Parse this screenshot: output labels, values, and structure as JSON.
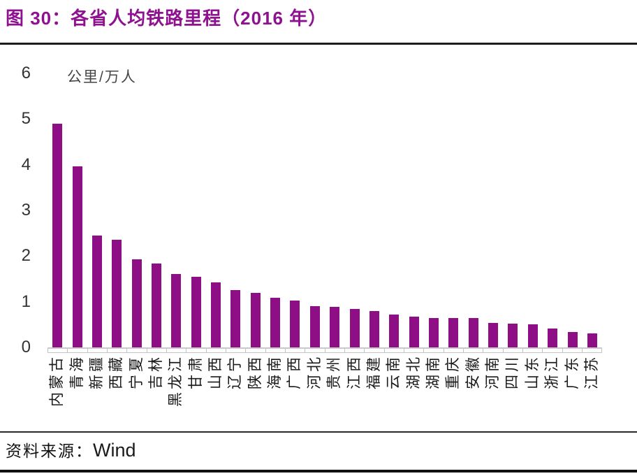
{
  "header": {
    "title": "图 30：各省人均铁路里程（2016 年）"
  },
  "source": {
    "prefix": "资料来源：",
    "name": "Wind"
  },
  "colors": {
    "bar": "#8E0F85",
    "title": "#8E1190",
    "axis_line": "#c9c9c9",
    "rule_dark": "#1c1c1c"
  },
  "chart_data": {
    "type": "bar",
    "title": "各省人均铁路里程（2016 年）",
    "unit_label": "公里/万人",
    "xlabel": "",
    "ylabel": "公里/万人",
    "ylim": [
      0,
      6
    ],
    "yticks": [
      0,
      1,
      2,
      3,
      4,
      5,
      6
    ],
    "grid": false,
    "legend": false,
    "bar_color": "#8E0F85",
    "categories": [
      "内蒙古",
      "青海",
      "新疆",
      "西藏",
      "宁夏",
      "吉林",
      "黑龙江",
      "甘肃",
      "山西",
      "辽宁",
      "陕西",
      "海南",
      "广西",
      "河北",
      "贵州",
      "江西",
      "福建",
      "云南",
      "湖北",
      "湖南",
      "重庆",
      "安徽",
      "河南",
      "四川",
      "山东",
      "浙江",
      "广东",
      "江苏"
    ],
    "values": [
      4.9,
      3.97,
      2.45,
      2.35,
      1.93,
      1.84,
      1.61,
      1.54,
      1.42,
      1.25,
      1.19,
      1.09,
      1.03,
      0.91,
      0.89,
      0.84,
      0.79,
      0.72,
      0.68,
      0.65,
      0.65,
      0.64,
      0.54,
      0.52,
      0.5,
      0.41,
      0.34,
      0.31
    ]
  }
}
